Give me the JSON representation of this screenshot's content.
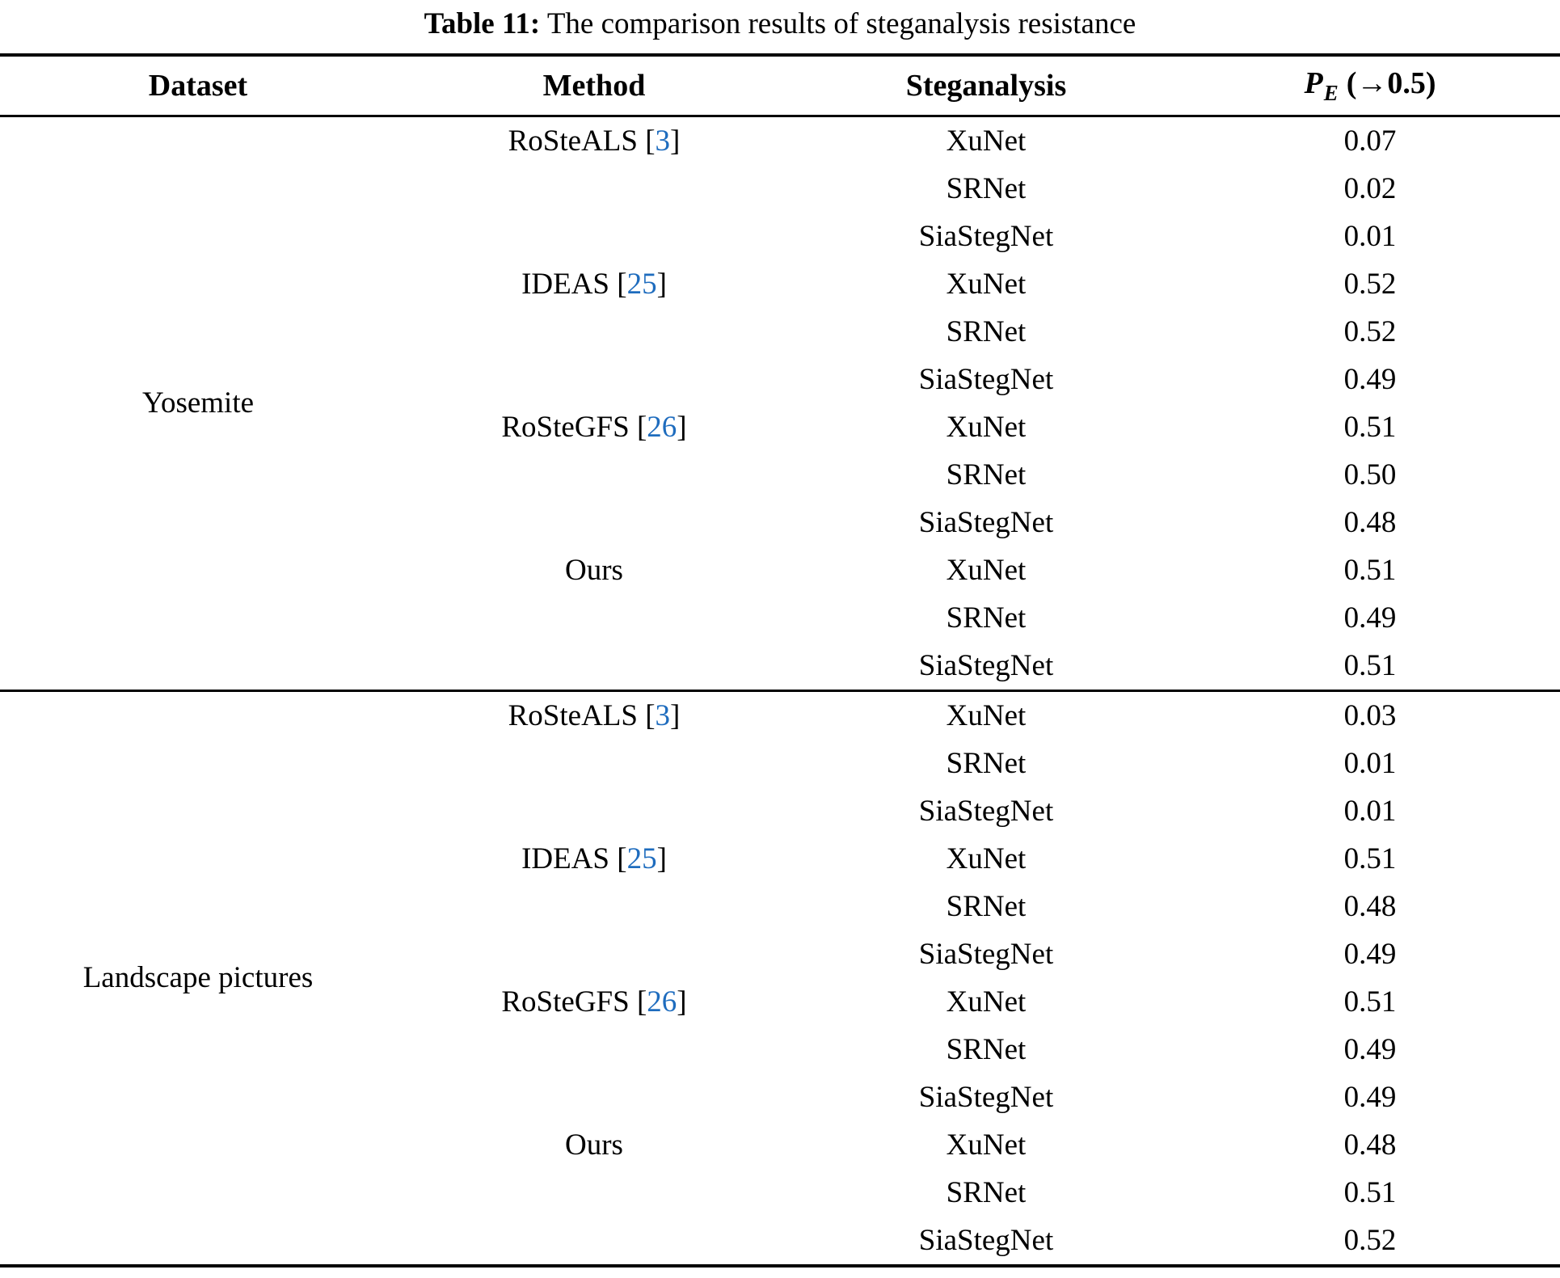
{
  "title": {
    "label": "Table 11:",
    "text": " The comparison results of steganalysis resistance"
  },
  "header": {
    "dataset": "Dataset",
    "method": "Method",
    "steganalysis": "Steganalysis",
    "pe": {
      "symbol": "P",
      "subscript": "E",
      "target": "(→0.5)"
    }
  },
  "symbols": {
    "cite_open": "[",
    "cite_close": "]"
  },
  "sections": [
    {
      "dataset": "Yosemite",
      "groups": [
        {
          "method": "RoSteALS",
          "cite": "3",
          "rows": [
            [
              "XuNet",
              "0.07"
            ],
            [
              "SRNet",
              "0.02"
            ],
            [
              "SiaStegNet",
              "0.01"
            ]
          ]
        },
        {
          "method": "IDEAS",
          "cite": "25",
          "rows": [
            [
              "XuNet",
              "0.52"
            ],
            [
              "SRNet",
              "0.52"
            ],
            [
              "SiaStegNet",
              "0.49"
            ]
          ]
        },
        {
          "method": "RoSteGFS",
          "cite": "26",
          "rows": [
            [
              "XuNet",
              "0.51"
            ],
            [
              "SRNet",
              "0.50"
            ],
            [
              "SiaStegNet",
              "0.48"
            ]
          ]
        },
        {
          "method": "Ours",
          "cite": null,
          "rows": [
            [
              "XuNet",
              "0.51"
            ],
            [
              "SRNet",
              "0.49"
            ],
            [
              "SiaStegNet",
              "0.51"
            ]
          ]
        }
      ]
    },
    {
      "dataset": "Landscape pictures",
      "groups": [
        {
          "method": "RoSteALS",
          "cite": "3",
          "rows": [
            [
              "XuNet",
              "0.03"
            ],
            [
              "SRNet",
              "0.01"
            ],
            [
              "SiaStegNet",
              "0.01"
            ]
          ]
        },
        {
          "method": "IDEAS",
          "cite": "25",
          "rows": [
            [
              "XuNet",
              "0.51"
            ],
            [
              "SRNet",
              "0.48"
            ],
            [
              "SiaStegNet",
              "0.49"
            ]
          ]
        },
        {
          "method": "RoSteGFS",
          "cite": "26",
          "rows": [
            [
              "XuNet",
              "0.51"
            ],
            [
              "SRNet",
              "0.49"
            ],
            [
              "SiaStegNet",
              "0.49"
            ]
          ]
        },
        {
          "method": "Ours",
          "cite": null,
          "rows": [
            [
              "XuNet",
              "0.48"
            ],
            [
              "SRNet",
              "0.51"
            ],
            [
              "SiaStegNet",
              "0.52"
            ]
          ]
        }
      ]
    }
  ],
  "colors": {
    "citation_blue": "#1E6CBE",
    "text": "#000000",
    "background": "#FFFFFF"
  }
}
